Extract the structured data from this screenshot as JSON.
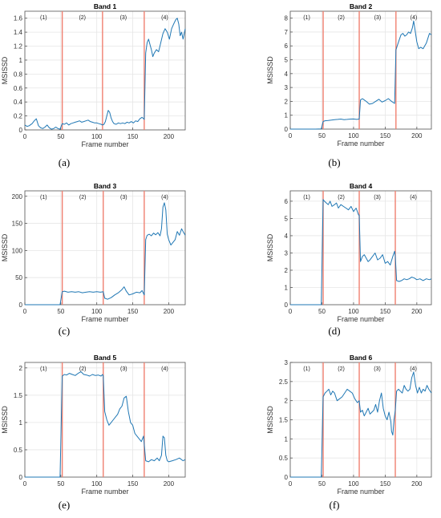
{
  "figure": {
    "phase_labels": [
      "(1)",
      "(2)",
      "(3)",
      "(4)"
    ],
    "boundary_color": "#f08070",
    "line_color": "#1f77b4",
    "grid_color": "#e6e6e6"
  },
  "chart_data": [
    {
      "type": "line",
      "title": "Band 1",
      "caption": "(a)",
      "xlabel": "Frame number",
      "ylabel": "MSISSD",
      "xlim": [
        0,
        223
      ],
      "ylim": [
        0,
        1.7
      ],
      "xticks": [
        0,
        50,
        100,
        150,
        200
      ],
      "yticks": [
        0,
        0.2,
        0.4,
        0.6,
        0.8,
        1,
        1.2,
        1.4,
        1.6
      ],
      "ytick_labels": [
        "0",
        "0.2",
        "0.4",
        "0.6",
        "0.8",
        "1",
        "1.2",
        "1.4",
        "1.6"
      ],
      "boundaries": [
        52,
        108,
        166
      ],
      "grid": true,
      "series": [
        {
          "x": [
            0,
            3,
            6,
            10,
            13,
            16,
            19,
            22,
            25,
            28,
            31,
            34,
            37,
            40,
            43,
            46,
            49,
            52,
            55,
            58,
            61,
            64,
            67,
            70,
            73,
            76,
            79,
            82,
            85,
            88,
            91,
            94,
            97,
            100,
            103,
            106,
            108,
            110,
            112,
            114,
            116,
            118,
            120,
            122,
            124,
            127,
            130,
            133,
            136,
            139,
            142,
            145,
            148,
            151,
            154,
            157,
            160,
            163,
            166,
            168,
            170,
            172,
            174,
            176,
            178,
            180,
            183,
            186,
            189,
            192,
            195,
            198,
            201,
            204,
            207,
            210,
            212,
            214,
            216,
            218,
            220,
            223
          ],
          "y": [
            0.07,
            0.05,
            0.06,
            0.09,
            0.13,
            0.16,
            0.06,
            0.03,
            0.02,
            0.04,
            0.07,
            0.03,
            0.01,
            0.02,
            0.04,
            0.02,
            0.01,
            0.09,
            0.08,
            0.1,
            0.07,
            0.09,
            0.1,
            0.11,
            0.12,
            0.13,
            0.11,
            0.12,
            0.13,
            0.14,
            0.12,
            0.11,
            0.1,
            0.1,
            0.09,
            0.08,
            0.07,
            0.08,
            0.12,
            0.2,
            0.28,
            0.25,
            0.17,
            0.12,
            0.09,
            0.08,
            0.1,
            0.09,
            0.1,
            0.09,
            0.11,
            0.1,
            0.12,
            0.1,
            0.13,
            0.12,
            0.16,
            0.18,
            0.15,
            1.1,
            1.25,
            1.3,
            1.22,
            1.15,
            1.05,
            1.1,
            1.15,
            1.12,
            1.25,
            1.38,
            1.45,
            1.4,
            1.3,
            1.45,
            1.52,
            1.58,
            1.6,
            1.52,
            1.35,
            1.4,
            1.3,
            1.45
          ]
        }
      ]
    },
    {
      "type": "line",
      "title": "Band 2",
      "caption": "(b)",
      "xlabel": "Frame number",
      "ylabel": "MSISSD",
      "xlim": [
        0,
        223
      ],
      "ylim": [
        0,
        8.5
      ],
      "xticks": [
        0,
        50,
        100,
        150,
        200
      ],
      "yticks": [
        0,
        1,
        2,
        3,
        4,
        5,
        6,
        7,
        8
      ],
      "ytick_labels": [
        "0",
        "1",
        "2",
        "3",
        "4",
        "5",
        "6",
        "7",
        "8"
      ],
      "boundaries": [
        52,
        109,
        167
      ],
      "grid": true,
      "series": [
        {
          "x": [
            0,
            10,
            20,
            30,
            40,
            49,
            52,
            55,
            60,
            65,
            70,
            75,
            80,
            85,
            90,
            95,
            100,
            105,
            109,
            111,
            114,
            117,
            120,
            125,
            130,
            135,
            140,
            145,
            150,
            155,
            160,
            165,
            167,
            169,
            172,
            175,
            178,
            181,
            184,
            187,
            190,
            193,
            195,
            197,
            200,
            203,
            206,
            210,
            215,
            220,
            223
          ],
          "y": [
            0,
            0,
            0,
            0,
            0,
            0.02,
            0.55,
            0.6,
            0.62,
            0.65,
            0.68,
            0.7,
            0.72,
            0.68,
            0.7,
            0.72,
            0.73,
            0.7,
            0.72,
            2.1,
            2.2,
            2.1,
            2.0,
            1.8,
            1.85,
            2.0,
            2.15,
            1.95,
            2.05,
            2.2,
            2.0,
            1.85,
            5.7,
            6.0,
            6.4,
            6.8,
            6.9,
            6.7,
            6.8,
            7.0,
            6.9,
            7.3,
            7.8,
            7.2,
            6.3,
            5.8,
            5.9,
            5.8,
            6.2,
            6.9,
            6.8
          ]
        }
      ]
    },
    {
      "type": "line",
      "title": "Band 3",
      "caption": "(c)",
      "xlabel": "Frame number",
      "ylabel": "MSISSD",
      "xlim": [
        0,
        223
      ],
      "ylim": [
        0,
        210
      ],
      "xticks": [
        0,
        50,
        100,
        150,
        200
      ],
      "yticks": [
        0,
        50,
        100,
        150,
        200
      ],
      "ytick_labels": [
        "0",
        "50",
        "100",
        "150",
        "200"
      ],
      "boundaries": [
        52,
        109,
        166
      ],
      "grid": true,
      "series": [
        {
          "x": [
            0,
            10,
            20,
            30,
            40,
            49,
            52,
            55,
            60,
            65,
            70,
            75,
            80,
            85,
            90,
            95,
            100,
            105,
            109,
            111,
            115,
            120,
            125,
            130,
            135,
            138,
            141,
            145,
            150,
            155,
            160,
            163,
            166,
            168,
            170,
            173,
            176,
            179,
            182,
            185,
            188,
            190,
            192,
            194,
            196,
            198,
            200,
            203,
            206,
            209,
            212,
            215,
            218,
            220,
            223
          ],
          "y": [
            0,
            0,
            0,
            0,
            0,
            0,
            24,
            25,
            23,
            24,
            23,
            24,
            22,
            23,
            24,
            23,
            24,
            23,
            24,
            12,
            10,
            13,
            18,
            22,
            28,
            33,
            25,
            18,
            20,
            23,
            22,
            26,
            18,
            120,
            128,
            130,
            127,
            132,
            129,
            133,
            127,
            140,
            180,
            188,
            175,
            130,
            120,
            110,
            115,
            120,
            135,
            128,
            140,
            135,
            128
          ]
        }
      ]
    },
    {
      "type": "line",
      "title": "Band 4",
      "caption": "(d)",
      "xlabel": "Frame number",
      "ylabel": "MSISSD",
      "xlim": [
        0,
        223
      ],
      "ylim": [
        0,
        6.6
      ],
      "xticks": [
        0,
        50,
        100,
        150,
        200
      ],
      "yticks": [
        0,
        1,
        2,
        3,
        4,
        5,
        6
      ],
      "ytick_labels": [
        "0",
        "1",
        "2",
        "3",
        "4",
        "5",
        "6"
      ],
      "boundaries": [
        52,
        109,
        166
      ],
      "grid": true,
      "series": [
        {
          "x": [
            0,
            10,
            20,
            30,
            40,
            49,
            52,
            54,
            57,
            60,
            63,
            66,
            70,
            73,
            76,
            80,
            84,
            88,
            92,
            96,
            100,
            104,
            108,
            109,
            111,
            114,
            117,
            120,
            123,
            126,
            130,
            134,
            138,
            142,
            146,
            150,
            154,
            158,
            162,
            165,
            166,
            168,
            172,
            176,
            180,
            184,
            188,
            192,
            196,
            200,
            205,
            210,
            215,
            220,
            223
          ],
          "y": [
            0,
            0,
            0,
            0,
            0,
            0,
            6.1,
            6.0,
            5.9,
            5.8,
            6.0,
            5.7,
            5.8,
            5.9,
            5.6,
            5.8,
            5.7,
            5.6,
            5.5,
            5.7,
            5.4,
            5.6,
            5.2,
            5.2,
            2.5,
            2.8,
            2.9,
            2.7,
            2.5,
            2.6,
            2.8,
            3.0,
            2.6,
            2.7,
            2.9,
            2.4,
            2.5,
            2.3,
            2.8,
            3.1,
            2.8,
            1.4,
            1.35,
            1.4,
            1.5,
            1.45,
            1.5,
            1.6,
            1.55,
            1.45,
            1.5,
            1.4,
            1.5,
            1.45,
            1.5
          ]
        }
      ]
    },
    {
      "type": "line",
      "title": "Band 5",
      "caption": "(e)",
      "xlabel": "Frame number",
      "ylabel": "MSISSD",
      "xlim": [
        0,
        223
      ],
      "ylim": [
        0,
        2.1
      ],
      "xticks": [
        0,
        50,
        100,
        150,
        200
      ],
      "yticks": [
        0,
        0.5,
        1,
        1.5,
        2
      ],
      "ytick_labels": [
        "0",
        "0.5",
        "1",
        "1.5",
        "2"
      ],
      "boundaries": [
        52,
        109,
        166
      ],
      "grid": true,
      "series": [
        {
          "x": [
            0,
            10,
            20,
            30,
            40,
            49,
            52,
            55,
            58,
            62,
            66,
            70,
            74,
            78,
            82,
            86,
            90,
            94,
            98,
            102,
            106,
            108,
            109,
            111,
            114,
            117,
            120,
            123,
            126,
            129,
            132,
            135,
            138,
            141,
            144,
            147,
            150,
            153,
            156,
            159,
            162,
            165,
            166,
            168,
            172,
            176,
            180,
            184,
            187,
            190,
            192,
            194,
            196,
            198,
            200,
            205,
            210,
            215,
            220,
            223
          ],
          "y": [
            0,
            0,
            0,
            0,
            0,
            0,
            1.85,
            1.88,
            1.87,
            1.9,
            1.88,
            1.86,
            1.9,
            1.93,
            1.88,
            1.87,
            1.85,
            1.88,
            1.86,
            1.87,
            1.85,
            1.88,
            1.85,
            1.2,
            1.05,
            0.95,
            1.0,
            1.05,
            1.1,
            1.15,
            1.25,
            1.3,
            1.45,
            1.48,
            1.2,
            1.0,
            0.95,
            0.8,
            0.75,
            0.7,
            0.65,
            0.75,
            0.6,
            0.3,
            0.28,
            0.32,
            0.3,
            0.35,
            0.3,
            0.4,
            0.75,
            0.72,
            0.4,
            0.3,
            0.28,
            0.3,
            0.32,
            0.35,
            0.3,
            0.32
          ]
        }
      ]
    },
    {
      "type": "line",
      "title": "Band 6",
      "caption": "(f)",
      "xlabel": "Frame number",
      "ylabel": "MSISSD",
      "xlim": [
        0,
        223
      ],
      "ylim": [
        0,
        3.0
      ],
      "xticks": [
        0,
        50,
        100,
        150,
        200
      ],
      "yticks": [
        0,
        0.5,
        1,
        1.5,
        2,
        2.5,
        3
      ],
      "ytick_labels": [
        "0",
        "0.5",
        "1",
        "1.5",
        "2",
        "2.5",
        "3"
      ],
      "boundaries": [
        52,
        109,
        166
      ],
      "grid": true,
      "series": [
        {
          "x": [
            0,
            10,
            20,
            30,
            40,
            49,
            52,
            55,
            58,
            61,
            64,
            67,
            70,
            74,
            78,
            82,
            86,
            90,
            94,
            98,
            102,
            106,
            109,
            111,
            114,
            117,
            120,
            123,
            126,
            129,
            132,
            135,
            138,
            141,
            144,
            147,
            150,
            153,
            156,
            159,
            160,
            162,
            164,
            166,
            168,
            171,
            174,
            177,
            180,
            183,
            186,
            189,
            192,
            195,
            198,
            201,
            204,
            207,
            210,
            213,
            216,
            219,
            223
          ],
          "y": [
            0,
            0,
            0,
            0,
            0,
            0,
            2.1,
            2.2,
            2.25,
            2.3,
            2.15,
            2.25,
            2.2,
            2.0,
            2.05,
            2.1,
            2.2,
            2.3,
            2.25,
            2.2,
            2.05,
            1.95,
            2.0,
            1.7,
            1.75,
            1.6,
            1.7,
            1.8,
            1.65,
            1.7,
            1.75,
            1.9,
            1.7,
            2.0,
            2.2,
            1.8,
            1.6,
            1.5,
            1.7,
            1.45,
            1.2,
            1.1,
            1.5,
            1.75,
            2.25,
            2.3,
            2.25,
            2.2,
            2.4,
            2.3,
            2.25,
            2.3,
            2.6,
            2.75,
            2.4,
            2.2,
            2.35,
            2.2,
            2.3,
            2.25,
            2.4,
            2.3,
            2.2
          ]
        }
      ]
    }
  ]
}
